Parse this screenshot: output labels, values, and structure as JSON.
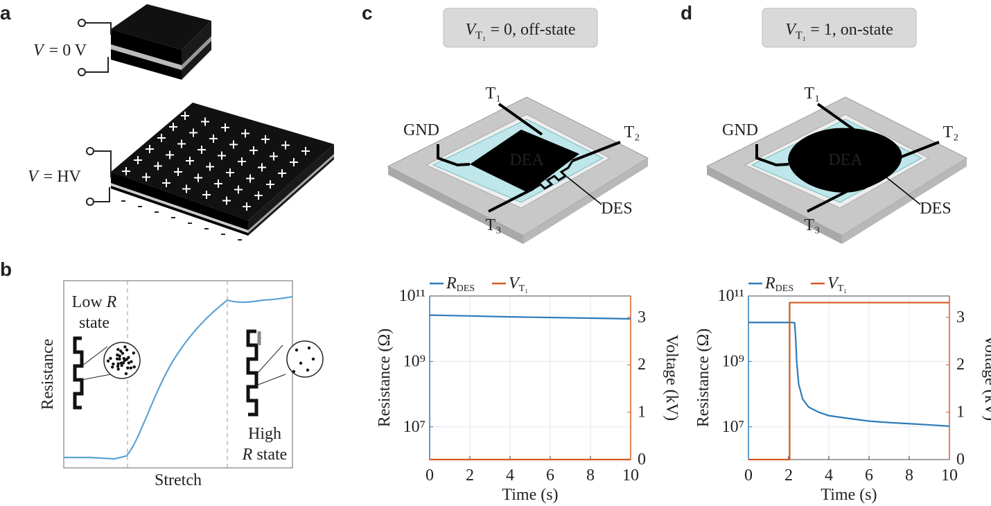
{
  "panel_labels": [
    "a",
    "b",
    "c",
    "d"
  ],
  "panel_a": {
    "states": [
      {
        "var": "V",
        "eq": "= 0 V"
      },
      {
        "var": "V",
        "eq": "= HV"
      }
    ]
  },
  "panel_b": {
    "ylabel": "Resistance",
    "xlabel": "Stretch",
    "low_state": {
      "pre": "Low",
      "var": "R",
      "post": "state"
    },
    "high_state": {
      "pre": "High",
      "var": "R",
      "post": "state"
    }
  },
  "panel_c": {
    "box": {
      "var": "V",
      "sub": "T₁",
      "text": "= 0, off-state"
    },
    "labels": {
      "gnd": "GND",
      "t1": "T₁",
      "t2": "T₂",
      "t3": "T₃",
      "dea": "DEA",
      "des": "DES"
    }
  },
  "panel_d": {
    "box": {
      "var": "V",
      "sub": "T₁",
      "text": "= 1, on-state"
    },
    "labels": {
      "gnd": "GND",
      "t1": "T₁",
      "t2": "T₂",
      "t3": "T₃",
      "dea": "DEA",
      "des": "DES"
    }
  },
  "chart_data": [
    {
      "type": "line",
      "xlabel": "Time (s)",
      "ylabel": "Resistance (Ω)",
      "y2label": "Voltage (kV)",
      "xlim": [
        0,
        10
      ],
      "xticks": [
        0,
        2,
        4,
        6,
        8,
        10
      ],
      "ylim": [
        1000000.0,
        100000000000.0
      ],
      "ylog": true,
      "yticks": [
        {
          "value": 10000000.0,
          "label": "10⁷"
        },
        {
          "value": 1000000000.0,
          "label": "10⁹"
        },
        {
          "value": 100000000000.0,
          "label": "10¹¹"
        }
      ],
      "y2lim": [
        0,
        3.45
      ],
      "y2ticks": [
        0,
        1,
        2,
        3
      ],
      "grid": true,
      "series": [
        {
          "name": "R",
          "name_sub": "DES",
          "color": "#2d7ab8",
          "x": [
            0,
            2,
            4,
            6,
            8,
            10
          ],
          "values": [
            26000000000.0,
            24500000000.0,
            23000000000.0,
            22000000000.0,
            21000000000.0,
            20000000000.0
          ]
        },
        {
          "name": "V",
          "name_sub": "T₁",
          "color": "#d55a21",
          "axis": "y2",
          "x": [
            0,
            10
          ],
          "values": [
            0,
            0
          ]
        }
      ]
    },
    {
      "type": "line",
      "xlabel": "Time (s)",
      "ylabel": "Resistance (Ω)",
      "y2label": "Voltage (kV)",
      "xlim": [
        0,
        10
      ],
      "xticks": [
        0,
        2,
        4,
        6,
        8,
        10
      ],
      "ylim": [
        1000000.0,
        100000000000.0
      ],
      "ylog": true,
      "yticks": [
        {
          "value": 10000000.0,
          "label": "10⁷"
        },
        {
          "value": 1000000000.0,
          "label": "10⁹"
        },
        {
          "value": 100000000000.0,
          "label": "10¹¹"
        }
      ],
      "y2lim": [
        0,
        3.45
      ],
      "y2ticks": [
        0,
        1,
        2,
        3
      ],
      "grid": true,
      "series": [
        {
          "name": "R",
          "name_sub": "DES",
          "color": "#2d7ab8",
          "x": [
            0,
            1,
            2,
            2.2,
            2.3,
            2.35,
            2.4,
            2.5,
            2.7,
            3,
            3.5,
            4,
            5,
            6,
            7,
            8,
            9,
            10
          ],
          "values": [
            15500000000.0,
            15500000000.0,
            15500000000.0,
            15500000000.0,
            15000000000.0,
            5000000000.0,
            1000000000.0,
            200000000.0,
            70000000.0,
            40000000.0,
            28000000.0,
            22000000.0,
            18000000.0,
            15000000.0,
            13500000.0,
            12500000.0,
            11500000.0,
            10500000.0
          ]
        },
        {
          "name": "V",
          "name_sub": "T₁",
          "color": "#d55a21",
          "axis": "y2",
          "x": [
            0,
            2.05,
            2.05,
            10
          ],
          "values": [
            0,
            0,
            3.31,
            3.31
          ]
        }
      ]
    }
  ]
}
